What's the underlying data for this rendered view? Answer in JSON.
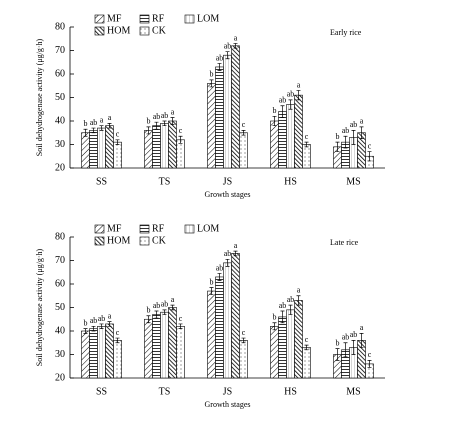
{
  "chart_data": [
    {
      "type": "bar",
      "title": "Early rice",
      "y_label": "Soil dehydrogenase activity (μg/g·h)",
      "x_label": "Growth stages",
      "categories": [
        "SS",
        "TS",
        "JS",
        "HS",
        "MS"
      ],
      "ylim": [
        20,
        80
      ],
      "yticks": [
        20,
        30,
        40,
        50,
        60,
        70,
        80
      ],
      "series": [
        {
          "name": "MF",
          "values": [
            35,
            36,
            56,
            40,
            29
          ],
          "errors": [
            1.5,
            1.5,
            1.5,
            2,
            2
          ],
          "letters": [
            "b",
            "b",
            "b",
            "b",
            "b"
          ]
        },
        {
          "name": "RF",
          "values": [
            36,
            38,
            63,
            44,
            31
          ],
          "errors": [
            1,
            1.5,
            1.5,
            2.5,
            2.5
          ],
          "letters": [
            "ab",
            "ab",
            "ab",
            "ab",
            "ab"
          ]
        },
        {
          "name": "LOM",
          "values": [
            37,
            39,
            68,
            47,
            33
          ],
          "errors": [
            1,
            1,
            1.5,
            2,
            3
          ],
          "letters": [
            "a",
            "ab",
            "ab",
            "ab",
            "ab"
          ]
        },
        {
          "name": "HOM",
          "values": [
            38,
            40,
            72,
            51,
            35
          ],
          "errors": [
            1,
            1.5,
            1,
            2,
            2.5
          ],
          "letters": [
            "a",
            "a",
            "a",
            "a",
            "a"
          ]
        },
        {
          "name": "CK",
          "values": [
            31,
            32,
            35,
            30,
            25
          ],
          "errors": [
            1,
            1.5,
            1,
            1,
            2
          ],
          "letters": [
            "c",
            "c",
            "c",
            "c",
            "c"
          ]
        }
      ]
    },
    {
      "type": "bar",
      "title": "Late rice",
      "y_label": "Soil dehydrogenase activity (μg/g·h)",
      "x_label": "Growth stages",
      "categories": [
        "SS",
        "TS",
        "JS",
        "HS",
        "MS"
      ],
      "ylim": [
        20,
        80
      ],
      "yticks": [
        20,
        30,
        40,
        50,
        60,
        70,
        80
      ],
      "series": [
        {
          "name": "MF",
          "values": [
            40,
            45,
            57,
            42,
            30
          ],
          "errors": [
            1,
            1.5,
            1.5,
            1.5,
            2.5
          ],
          "letters": [
            "b",
            "b",
            "b",
            "b",
            "b"
          ]
        },
        {
          "name": "RF",
          "values": [
            41,
            47,
            63,
            46,
            32
          ],
          "errors": [
            1,
            1.5,
            1.5,
            2.5,
            3
          ],
          "letters": [
            "ab",
            "ab",
            "ab",
            "ab",
            "ab"
          ]
        },
        {
          "name": "LOM",
          "values": [
            42,
            48,
            69,
            49,
            33
          ],
          "errors": [
            1,
            1,
            1.5,
            2,
            3
          ],
          "letters": [
            "ab",
            "ab",
            "ab",
            "ab",
            "ab"
          ]
        },
        {
          "name": "HOM",
          "values": [
            43,
            50,
            73,
            53,
            36
          ],
          "errors": [
            1,
            1,
            1,
            2,
            3
          ],
          "letters": [
            "a",
            "a",
            "a",
            "a",
            "a"
          ]
        },
        {
          "name": "CK",
          "values": [
            36,
            42,
            36,
            33,
            26
          ],
          "errors": [
            1,
            1,
            1,
            1,
            1.5
          ],
          "letters": [
            "c",
            "c",
            "c",
            "c",
            "c"
          ]
        }
      ]
    }
  ]
}
